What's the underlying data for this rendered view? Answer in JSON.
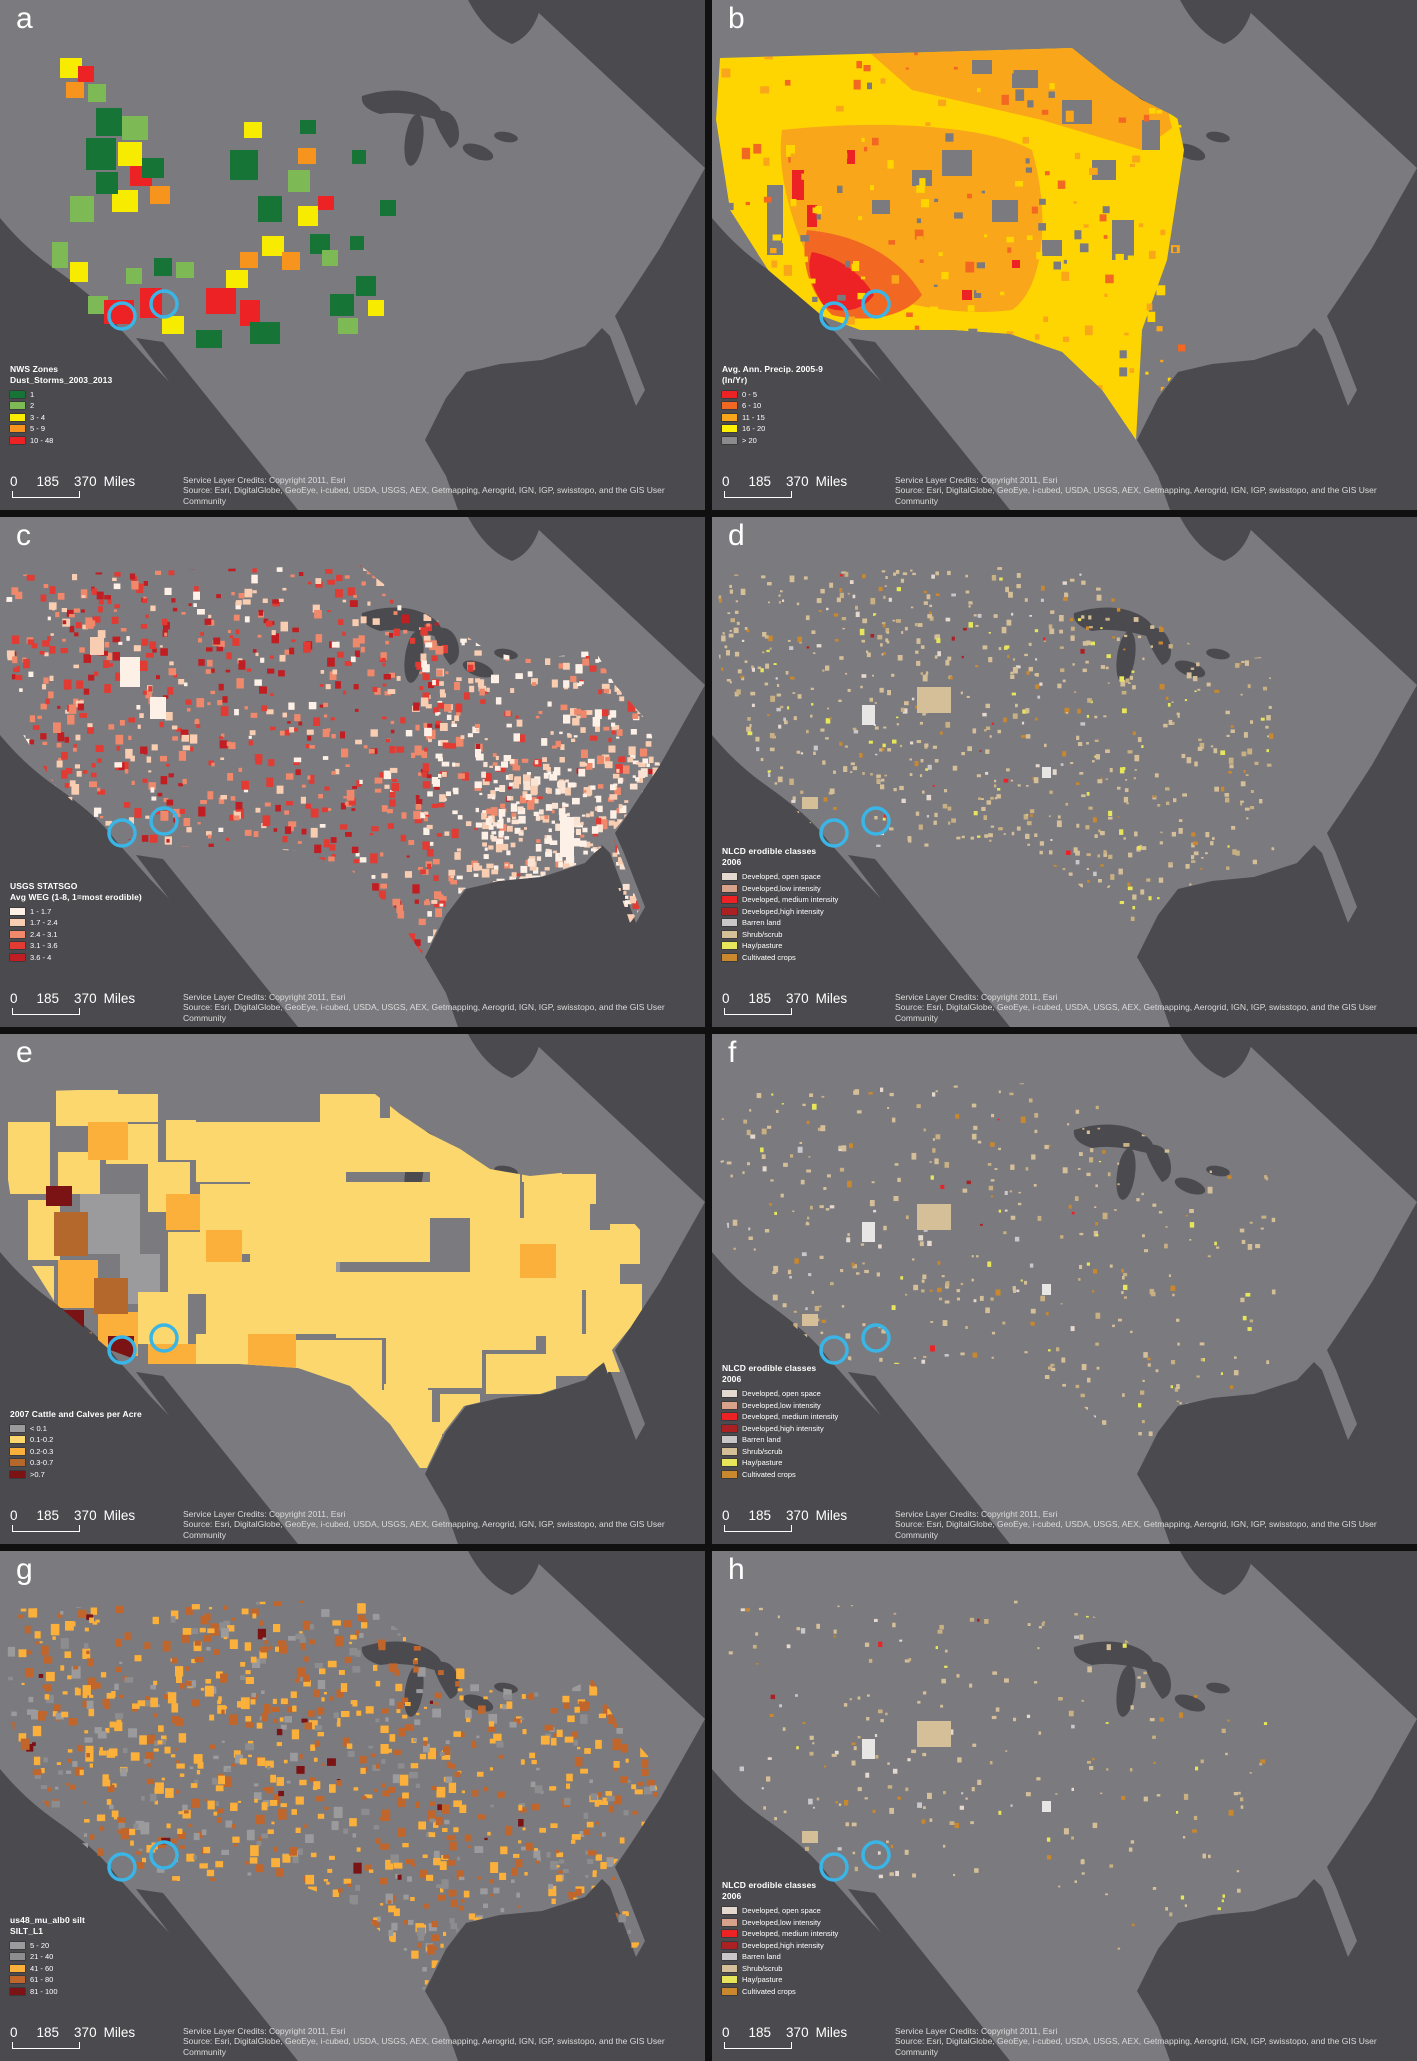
{
  "figure": {
    "scalebar": {
      "zero": "0",
      "mid": "185",
      "max": "370",
      "unit": "Miles"
    },
    "credits": {
      "line1": "Service Layer Credits: Copyright 2011, Esri",
      "line2": "Source: Esri, DigitalGlobe, GeoEye, i-cubed, USDA, USGS, AEX, Getmapping, Aerogrid, IGN, IGP, swisstopo, and the GIS User Community"
    },
    "marker_color": "#3ab5e6",
    "ocean_color": "#4b4a4e",
    "land_color": "#7b7a7e"
  },
  "panels": [
    {
      "letter": "a",
      "art": "zones",
      "title_lines": [
        "NWS Zones",
        "Dust_Storms_2003_2013"
      ],
      "legend_items": [
        {
          "label": "1",
          "color": "#177437"
        },
        {
          "label": "2",
          "color": "#7db954"
        },
        {
          "label": "3 - 4",
          "color": "#f7ec00"
        },
        {
          "label": "5 - 9",
          "color": "#f7941e"
        },
        {
          "label": "10 - 48",
          "color": "#ed2224"
        }
      ]
    },
    {
      "letter": "b",
      "art": "precip",
      "title_lines": [
        "Avg. Ann. Precip. 2005-9",
        "(In/Yr)"
      ],
      "legend_items": [
        {
          "label": "0 - 5",
          "color": "#ed2224"
        },
        {
          "label": "6 - 10",
          "color": "#f26822"
        },
        {
          "label": "11 - 15",
          "color": "#faa61a"
        },
        {
          "label": "16 - 20",
          "color": "#fff100"
        },
        {
          "label": "> 20",
          "color": "#8b8b8e"
        }
      ]
    },
    {
      "letter": "c",
      "art": "weg",
      "title_lines": [
        "USGS STATSGO",
        "Avg WEG (1-8, 1=most erodible)"
      ],
      "legend_items": [
        {
          "label": "1 - 1.7",
          "color": "#fdf0e6"
        },
        {
          "label": "1.7 - 2.4",
          "color": "#f8cdb2"
        },
        {
          "label": "2.4 - 3.1",
          "color": "#f0886c"
        },
        {
          "label": "3.1 - 3.6",
          "color": "#e23b33"
        },
        {
          "label": "3.6 - 4",
          "color": "#c01e22"
        }
      ]
    },
    {
      "letter": "d",
      "art": "nlcd",
      "title_lines": [
        "NLCD erodible classes",
        "2006"
      ],
      "legend_items": [
        {
          "label": "Developed, open space",
          "color": "#e5d9cf"
        },
        {
          "label": "Developed,low intensity",
          "color": "#d7a289"
        },
        {
          "label": "Developed, medium intensity",
          "color": "#ed2224"
        },
        {
          "label": "Developed,high intensity",
          "color": "#aa2124"
        },
        {
          "label": "Barren land",
          "color": "#c9c7c8"
        },
        {
          "label": "Shrub/scrub",
          "color": "#d5bf99"
        },
        {
          "label": "Hay/pasture",
          "color": "#e7e65a"
        },
        {
          "label": "Cultivated crops",
          "color": "#c9882e"
        }
      ]
    },
    {
      "letter": "e",
      "art": "cattle",
      "title_lines": [
        "2007 Cattle and Calves per Acre"
      ],
      "legend_items": [
        {
          "label": "< 0.1",
          "color": "#9b9b9d"
        },
        {
          "label": "0.1-0.2",
          "color": "#fbd76d"
        },
        {
          "label": "0.2-0.3",
          "color": "#fbb03b"
        },
        {
          "label": "0.3-0.7",
          "color": "#b5682b"
        },
        {
          "label": ">0.7",
          "color": "#7b1315"
        }
      ]
    },
    {
      "letter": "f",
      "art": "nlcd",
      "title_lines": [
        "NLCD erodible classes",
        "2006"
      ],
      "legend_items": [
        {
          "label": "Developed, open space",
          "color": "#e5d9cf"
        },
        {
          "label": "Developed,low intensity",
          "color": "#d7a289"
        },
        {
          "label": "Developed, medium intensity",
          "color": "#ed2224"
        },
        {
          "label": "Developed,high intensity",
          "color": "#aa2124"
        },
        {
          "label": "Barren land",
          "color": "#c9c7c8"
        },
        {
          "label": "Shrub/scrub",
          "color": "#d5bf99"
        },
        {
          "label": "Hay/pasture",
          "color": "#e7e65a"
        },
        {
          "label": "Cultivated crops",
          "color": "#c9882e"
        }
      ]
    },
    {
      "letter": "g",
      "art": "silt",
      "title_lines": [
        "us48_mu_alb0 silt",
        "SILT_L1"
      ],
      "legend_items": [
        {
          "label": "5 - 20",
          "color": "#9b9b9d"
        },
        {
          "label": "21 - 40",
          "color": "#8d8d90"
        },
        {
          "label": "41 - 60",
          "color": "#fbb03b"
        },
        {
          "label": "61 - 80",
          "color": "#c0652b"
        },
        {
          "label": "81 - 100",
          "color": "#7b1315"
        }
      ]
    },
    {
      "letter": "h",
      "art": "nlcd",
      "title_lines": [
        "NLCD erodible classes",
        "2006"
      ],
      "legend_items": [
        {
          "label": "Developed, open space",
          "color": "#e5d9cf"
        },
        {
          "label": "Developed,low intensity",
          "color": "#d7a289"
        },
        {
          "label": "Developed, medium intensity",
          "color": "#ed2224"
        },
        {
          "label": "Developed,high intensity",
          "color": "#aa2124"
        },
        {
          "label": "Barren land",
          "color": "#c9c7c8"
        },
        {
          "label": "Shrub/scrub",
          "color": "#d5bf99"
        },
        {
          "label": "Hay/pasture",
          "color": "#e7e65a"
        },
        {
          "label": "Cultivated crops",
          "color": "#c9882e"
        }
      ]
    }
  ]
}
